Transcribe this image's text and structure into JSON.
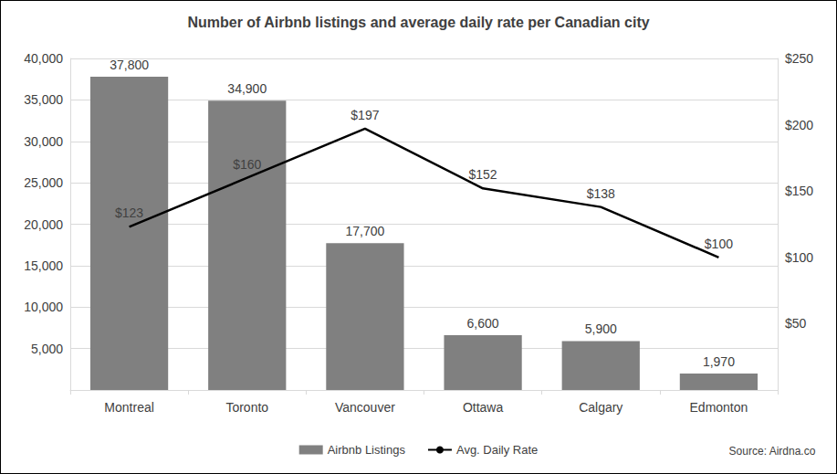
{
  "chart_data": {
    "type": "bar",
    "title": "Number of Airbnb listings and average daily rate per Canadian city",
    "categories": [
      "Montreal",
      "Toronto",
      "Vancouver",
      "Ottawa",
      "Calgary",
      "Edmonton"
    ],
    "series": [
      {
        "name": "Airbnb Listings",
        "type": "bar",
        "color": "#808080",
        "values": [
          37800,
          34900,
          17700,
          6600,
          5900,
          1970
        ],
        "value_labels": [
          "37,800",
          "34,900",
          "17,700",
          "6,600",
          "5,900",
          "1,970"
        ]
      },
      {
        "name": "Avg. Daily Rate",
        "type": "line",
        "color": "#000000",
        "axis": "y2",
        "values": [
          123,
          160,
          197,
          152,
          138,
          100
        ],
        "value_labels": [
          "$123",
          "$160",
          "$197",
          "$152",
          "$138",
          "$100"
        ]
      }
    ],
    "ylim": [
      0,
      40000
    ],
    "yticks": [
      {
        "value": 5000,
        "label": "5,000"
      },
      {
        "value": 10000,
        "label": "10,000"
      },
      {
        "value": 15000,
        "label": "15,000"
      },
      {
        "value": 20000,
        "label": "20,000"
      },
      {
        "value": 25000,
        "label": "25,000"
      },
      {
        "value": 30000,
        "label": "30,000"
      },
      {
        "value": 35000,
        "label": "35,000"
      },
      {
        "value": 40000,
        "label": "40,000"
      }
    ],
    "y2lim": [
      0,
      250
    ],
    "y2ticks": [
      {
        "value": 50,
        "label": "$50"
      },
      {
        "value": 100,
        "label": "$100"
      },
      {
        "value": 150,
        "label": "$150"
      },
      {
        "value": 200,
        "label": "$200"
      },
      {
        "value": 250,
        "label": "$250"
      }
    ],
    "grid": true,
    "legend": "bottom",
    "data_labels": true,
    "annotations": [
      "Source: Airdna.co"
    ]
  }
}
